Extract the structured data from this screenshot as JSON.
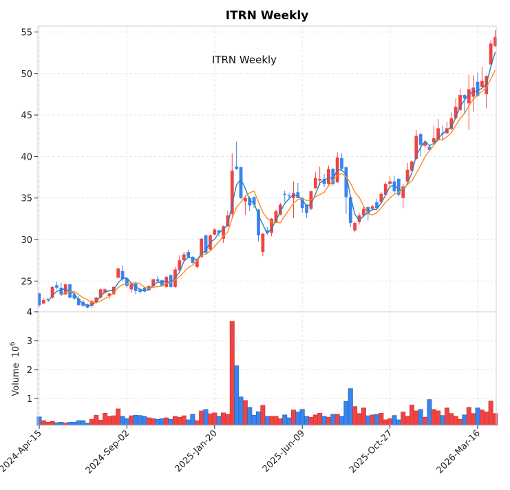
{
  "chart_data": {
    "type": "candlestick",
    "title": "ITRN  Weekly",
    "annotation": "ITRN  Weekly",
    "ylabel_volume": "Volume",
    "volume_scale_base": "10",
    "volume_scale_exp": "6",
    "price_ylim": [
      21.3,
      55.7
    ],
    "price_yticks": [
      25,
      30,
      35,
      40,
      45,
      50,
      55
    ],
    "volume_ylim": [
      0.07,
      4.0
    ],
    "volume_yticks": [
      1,
      2,
      3,
      4
    ],
    "x_ticks": [
      {
        "index": 0,
        "label": "2024-Apr-15"
      },
      {
        "index": 20,
        "label": "2024-Sep-02"
      },
      {
        "index": 40,
        "label": "2025-Jan-20"
      },
      {
        "index": 60,
        "label": "2025-Jun-09"
      },
      {
        "index": 80,
        "label": "2025-Oct-27"
      },
      {
        "index": 100,
        "label": "2026-Mar-16"
      }
    ],
    "ma_periods": [
      3,
      6
    ],
    "grid": true,
    "colors": {
      "up": "#f04444",
      "down": "#3a84f0",
      "up_edge": "#d23a3a",
      "down_edge": "#2a6cb8",
      "ma3": "#2c7fb8",
      "ma6": "#ff8a1e"
    },
    "open": [
      23.5,
      22.3,
      22.7,
      23.0,
      24.5,
      24.2,
      23.4,
      24.6,
      23.4,
      22.9,
      22.5,
      22.2,
      22.0,
      22.4,
      23.0,
      23.6,
      23.2,
      23.4,
      25.4,
      26.2,
      25.3,
      24.0,
      24.7,
      24.0,
      24.2,
      23.9,
      24.4,
      25.2,
      25.1,
      24.3,
      25.7,
      24.3,
      26.3,
      27.5,
      28.5,
      27.9,
      26.7,
      27.9,
      30.5,
      28.8,
      30.6,
      31.1,
      30.1,
      31.6,
      33.1,
      38.8,
      38.7,
      34.6,
      35.0,
      35.1,
      33.6,
      28.5,
      31.1,
      30.8,
      32.1,
      33.0,
      35.5,
      35.3,
      35.0,
      35.7,
      35.0,
      34.2,
      33.7,
      36.2,
      37.1,
      37.3,
      36.7,
      38.5,
      36.9,
      39.8,
      38.7,
      35.1,
      31.1,
      32.1,
      32.9,
      33.9,
      33.7,
      34.5,
      34.5,
      35.4,
      36.7,
      37.0,
      37.3,
      35.0,
      37.0,
      38.3,
      39.7,
      42.7,
      41.3,
      41.2,
      41.7,
      42.0,
      42.8,
      42.8,
      43.3,
      44.6,
      45.6,
      47.4,
      46.4,
      47.2,
      49.0,
      48.4,
      47.5,
      51.1,
      53.3
    ],
    "high": [
      23.6,
      22.9,
      23.0,
      24.4,
      24.9,
      24.8,
      24.7,
      24.7,
      23.6,
      23.2,
      22.7,
      22.3,
      22.7,
      23.1,
      24.1,
      24.2,
      23.6,
      24.4,
      26.6,
      26.9,
      25.4,
      24.7,
      24.9,
      24.1,
      24.3,
      24.5,
      25.3,
      25.6,
      25.2,
      25.6,
      25.8,
      26.7,
      28.1,
      28.5,
      28.8,
      28.0,
      27.7,
      30.2,
      30.6,
      30.6,
      31.4,
      31.2,
      31.7,
      33.5,
      40.4,
      41.8,
      38.8,
      35.2,
      35.2,
      35.2,
      33.7,
      30.8,
      31.5,
      32.6,
      33.6,
      34.4,
      35.9,
      35.6,
      37.0,
      36.8,
      35.1,
      34.3,
      35.9,
      38.1,
      38.8,
      37.9,
      38.9,
      38.6,
      40.5,
      40.4,
      38.8,
      35.2,
      32.1,
      33.2,
      34.0,
      34.0,
      34.2,
      34.9,
      35.7,
      36.9,
      37.6,
      37.7,
      37.4,
      36.7,
      39.2,
      39.6,
      43.2,
      42.8,
      41.8,
      41.4,
      43.7,
      44.5,
      43.7,
      44.2,
      45.3,
      47.0,
      48.2,
      47.5,
      49.8,
      49.8,
      50.1,
      50.8,
      49.8,
      54.0,
      55.2
    ],
    "low": [
      21.9,
      22.2,
      22.6,
      22.9,
      24.0,
      23.2,
      23.3,
      22.9,
      22.7,
      22.0,
      21.9,
      21.7,
      21.8,
      22.3,
      22.9,
      23.5,
      22.8,
      23.3,
      25.3,
      25.0,
      24.2,
      23.6,
      23.4,
      23.5,
      23.6,
      23.8,
      24.3,
      24.8,
      24.3,
      24.2,
      24.2,
      24.2,
      26.2,
      27.4,
      27.8,
      27.1,
      26.5,
      27.8,
      28.2,
      28.7,
      30.5,
      30.4,
      29.6,
      31.5,
      32.5,
      38.4,
      34.9,
      33.0,
      33.4,
      33.8,
      29.8,
      28.0,
      30.6,
      30.4,
      32.0,
      32.9,
      34.5,
      34.8,
      32.6,
      35.0,
      33.2,
      32.6,
      33.5,
      36.1,
      36.5,
      36.3,
      36.6,
      36.5,
      36.8,
      38.4,
      33.1,
      31.5,
      30.9,
      31.8,
      32.7,
      32.3,
      33.5,
      33.6,
      34.3,
      35.3,
      36.5,
      35.6,
      35.2,
      33.8,
      36.9,
      38.2,
      39.6,
      40.0,
      41.0,
      40.6,
      41.6,
      41.9,
      41.9,
      42.7,
      43.2,
      44.5,
      45.5,
      45.2,
      43.2,
      45.4,
      47.2,
      48.3,
      45.8,
      51.0,
      53.2
    ],
    "close": [
      22.1,
      22.7,
      22.8,
      24.3,
      24.2,
      23.4,
      24.6,
      23.0,
      22.9,
      22.1,
      22.0,
      21.8,
      22.6,
      23.0,
      24.0,
      24.0,
      23.5,
      24.3,
      26.5,
      25.2,
      24.4,
      24.6,
      23.8,
      23.7,
      23.8,
      24.4,
      25.2,
      25.0,
      24.4,
      25.5,
      24.3,
      26.4,
      27.5,
      28.2,
      27.9,
      27.2,
      27.6,
      30.1,
      28.4,
      30.5,
      31.2,
      30.8,
      31.6,
      32.9,
      38.3,
      38.5,
      35.0,
      35.0,
      34.1,
      34.2,
      30.5,
      30.7,
      30.9,
      32.5,
      33.4,
      34.2,
      35.4,
      35.2,
      35.6,
      35.0,
      33.8,
      33.2,
      35.8,
      37.4,
      37.3,
      36.7,
      38.5,
      36.7,
      39.9,
      38.5,
      35.1,
      32.0,
      32.0,
      32.9,
      33.7,
      33.1,
      34.0,
      33.8,
      35.5,
      36.7,
      37.0,
      35.8,
      35.4,
      36.4,
      38.4,
      39.4,
      42.5,
      41.4,
      41.7,
      40.8,
      42.2,
      43.4,
      42.7,
      43.4,
      44.6,
      46.0,
      47.4,
      47.0,
      48.1,
      48.3,
      47.3,
      49.1,
      49.7,
      53.6,
      54.4
    ],
    "volume": [
      0.36,
      0.23,
      0.18,
      0.21,
      0.16,
      0.18,
      0.15,
      0.18,
      0.18,
      0.23,
      0.23,
      0.14,
      0.28,
      0.42,
      0.25,
      0.49,
      0.38,
      0.4,
      0.64,
      0.38,
      0.3,
      0.4,
      0.42,
      0.41,
      0.38,
      0.33,
      0.3,
      0.28,
      0.3,
      0.33,
      0.28,
      0.38,
      0.35,
      0.4,
      0.26,
      0.45,
      0.23,
      0.57,
      0.62,
      0.47,
      0.5,
      0.38,
      0.5,
      0.45,
      3.67,
      2.13,
      1.05,
      0.93,
      0.69,
      0.42,
      0.54,
      0.76,
      0.38,
      0.38,
      0.38,
      0.3,
      0.43,
      0.33,
      0.6,
      0.53,
      0.62,
      0.38,
      0.35,
      0.43,
      0.49,
      0.38,
      0.35,
      0.45,
      0.45,
      0.38,
      0.9,
      1.34,
      0.72,
      0.48,
      0.67,
      0.4,
      0.43,
      0.45,
      0.49,
      0.26,
      0.3,
      0.41,
      0.26,
      0.53,
      0.38,
      0.77,
      0.57,
      0.62,
      0.35,
      0.96,
      0.62,
      0.57,
      0.41,
      0.67,
      0.48,
      0.38,
      0.28,
      0.43,
      0.69,
      0.48,
      0.67,
      0.6,
      0.53,
      0.91,
      0.48
    ]
  }
}
